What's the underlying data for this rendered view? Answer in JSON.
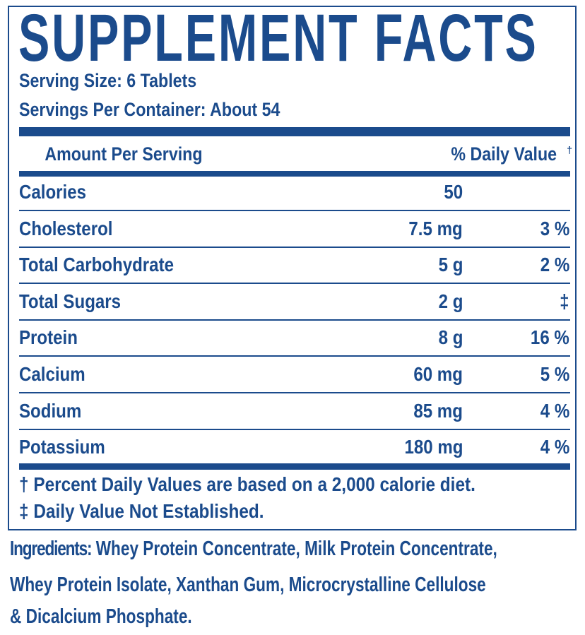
{
  "title": "SUPPLEMENT FACTS",
  "serving_size": "Serving Size: 6 Tablets",
  "servings_per_container": "Servings Per Container: About 54",
  "header": {
    "amount": "Amount Per Serving",
    "dv": "% Daily Value",
    "dv_mark": "†"
  },
  "rows": [
    {
      "name": "Calories",
      "amount": "50",
      "dv": ""
    },
    {
      "name": "Cholesterol",
      "amount": "7.5 mg",
      "dv": "3 %"
    },
    {
      "name": "Total Carbohydrate",
      "amount": "5 g",
      "dv": "2 %"
    },
    {
      "name": "Total Sugars",
      "amount": "2 g",
      "dv": "‡"
    },
    {
      "name": "Protein",
      "amount": "8 g",
      "dv": "16 %"
    },
    {
      "name": "Calcium",
      "amount": "60 mg",
      "dv": "5 %"
    },
    {
      "name": "Sodium",
      "amount": "85 mg",
      "dv": "4 %"
    },
    {
      "name": "Potassium",
      "amount": "180 mg",
      "dv": "4 %"
    }
  ],
  "footnotes": [
    "† Percent Daily Values are based on a 2,000 calorie diet.",
    "‡ Daily Value Not Established."
  ],
  "ingredients": {
    "label": "Ingredients:",
    "lines": [
      " Whey Protein Concentrate, Milk Protein Concentrate,",
      "Whey Protein Isolate, Xanthan Gum, Microcrystalline Cellulose",
      "& Dicalcium Phosphate."
    ]
  },
  "colors": {
    "ink": "#1b4b8c",
    "background": "#ffffff"
  }
}
